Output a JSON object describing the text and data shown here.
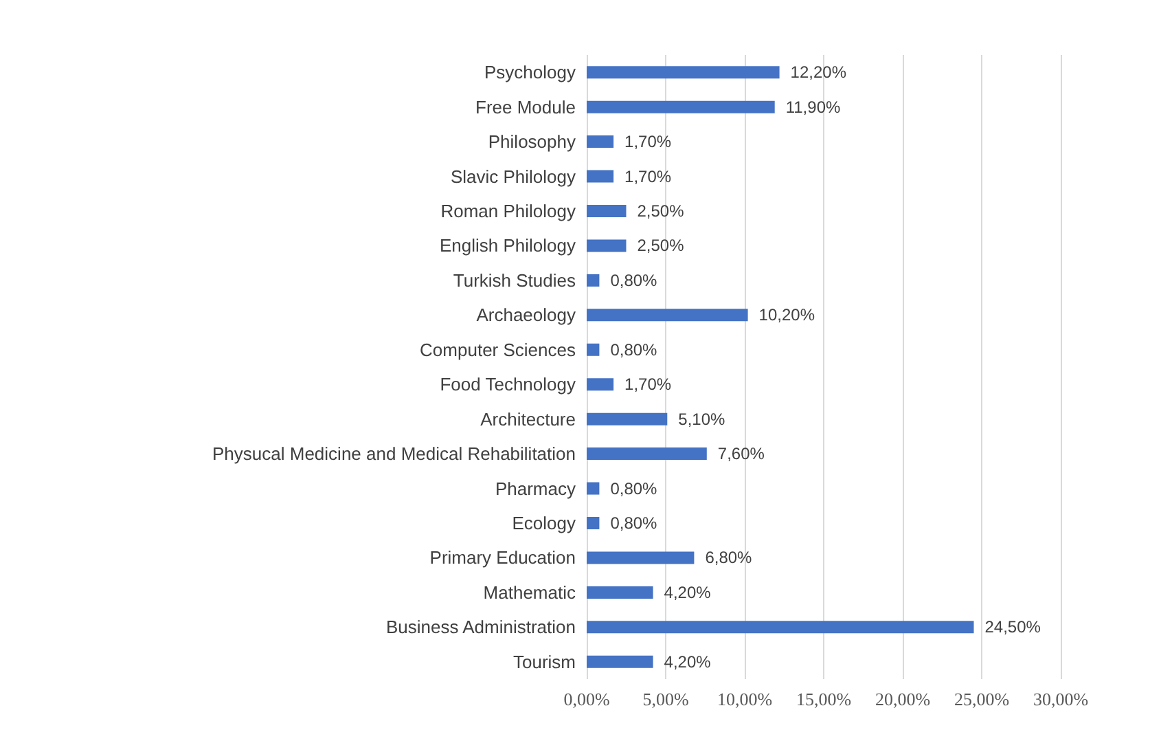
{
  "chart_data": {
    "type": "bar",
    "orientation": "horizontal",
    "categories": [
      "Psychology",
      "Free Module",
      "Philosophy",
      "Slavic Philology",
      "Roman Philology",
      "English Philology",
      "Turkish Studies",
      "Archaeology",
      "Computer Sciences",
      "Food Technology",
      "Architecture",
      "Physucal Medicine and Medical Rehabilitation",
      "Pharmacy",
      "Ecology",
      "Primary Education",
      "Mathematic",
      "Business Administration",
      "Tourism"
    ],
    "values": [
      12.2,
      11.9,
      1.7,
      1.7,
      2.5,
      2.5,
      0.8,
      10.2,
      0.8,
      1.7,
      5.1,
      7.6,
      0.8,
      0.8,
      6.8,
      4.2,
      24.5,
      4.2
    ],
    "value_labels": [
      "12,20%",
      "11,90%",
      "1,70%",
      "1,70%",
      "2,50%",
      "2,50%",
      "0,80%",
      "10,20%",
      "0,80%",
      "1,70%",
      "5,10%",
      "7,60%",
      "0,80%",
      "0,80%",
      "6,80%",
      "4,20%",
      "24,50%",
      "4,20%"
    ],
    "color": "#4472c4",
    "xlim": [
      0,
      30
    ],
    "xticks": [
      {
        "value": 0,
        "label": "0,00%"
      },
      {
        "value": 5,
        "label": "5,00%"
      },
      {
        "value": 10,
        "label": "10,00%"
      },
      {
        "value": 15,
        "label": "15,00%"
      },
      {
        "value": 20,
        "label": "20,00%"
      },
      {
        "value": 25,
        "label": "25,00%"
      },
      {
        "value": 30,
        "label": "30,00%"
      }
    ],
    "grid": "x"
  }
}
